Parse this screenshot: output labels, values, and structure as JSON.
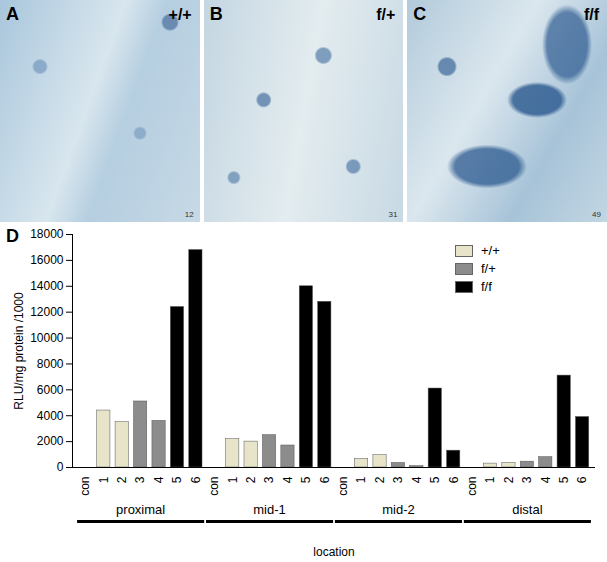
{
  "panels": [
    {
      "letter": "A",
      "genotype": "+/+",
      "number": "12"
    },
    {
      "letter": "B",
      "genotype": "f/+",
      "number": "31"
    },
    {
      "letter": "C",
      "genotype": "f/f",
      "number": "49"
    }
  ],
  "chart_data": {
    "type": "bar",
    "label": "D",
    "y_label": "RLU/mg protein /1000",
    "x_label": "location",
    "groups": [
      "proximal",
      "mid-1",
      "mid-2",
      "distal"
    ],
    "categories": [
      "con",
      "1",
      "2",
      "3",
      "4",
      "5",
      "6",
      "con",
      "1",
      "2",
      "3",
      "4",
      "5",
      "6",
      "con",
      "1",
      "2",
      "3",
      "4",
      "5",
      "6",
      "con",
      "1",
      "2",
      "3",
      "4",
      "5",
      "6"
    ],
    "series": [
      {
        "name": "+/+",
        "color": "#e8e4c9",
        "values": [
          null,
          4400,
          3500,
          null,
          null,
          null,
          null,
          null,
          2200,
          2000,
          null,
          null,
          null,
          null,
          null,
          650,
          950,
          null,
          null,
          null,
          null,
          null,
          300,
          350,
          null,
          null,
          null,
          null
        ]
      },
      {
        "name": "f/+",
        "color": "#8c8c8c",
        "values": [
          null,
          null,
          null,
          5100,
          3600,
          null,
          null,
          null,
          null,
          null,
          2500,
          1700,
          null,
          null,
          null,
          null,
          null,
          350,
          100,
          null,
          null,
          null,
          null,
          null,
          450,
          800,
          null,
          null
        ]
      },
      {
        "name": "f/f",
        "color": "#000000",
        "values": [
          null,
          null,
          null,
          null,
          null,
          12400,
          16800,
          null,
          null,
          null,
          null,
          null,
          14000,
          12800,
          null,
          null,
          null,
          null,
          null,
          6100,
          1300,
          null,
          null,
          null,
          null,
          null,
          7100,
          3900
        ]
      }
    ],
    "ylim": [
      0,
      18000
    ],
    "yticks": [
      0,
      2000,
      4000,
      6000,
      8000,
      10000,
      12000,
      14000,
      16000,
      18000
    ],
    "legend": "top-right",
    "grid": false
  }
}
